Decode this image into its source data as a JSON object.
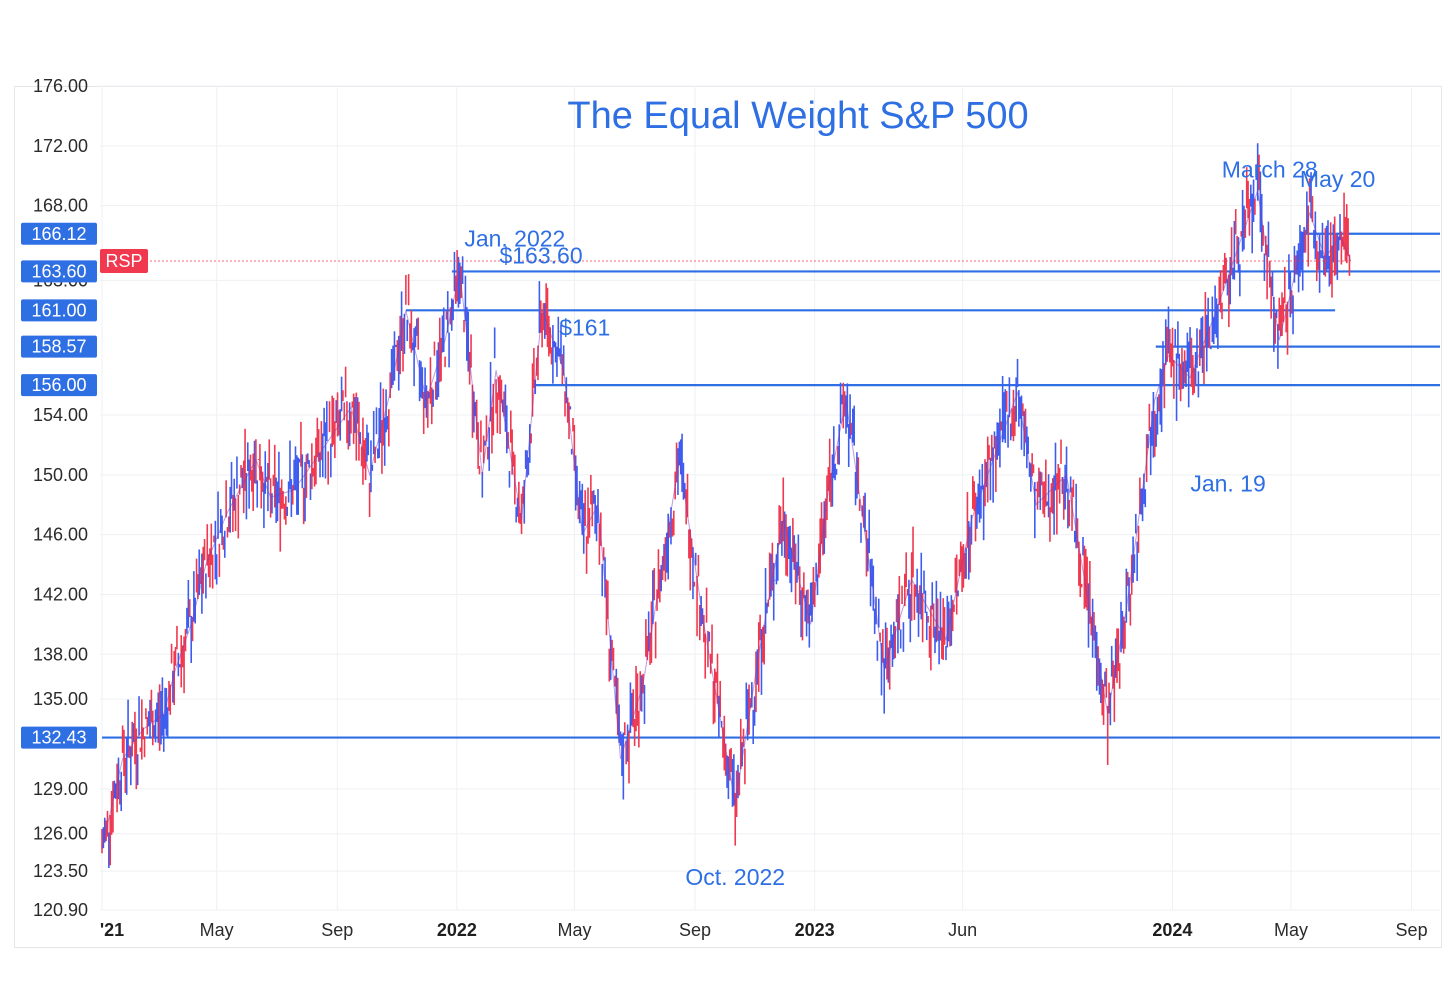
{
  "chart_data": {
    "type": "line",
    "title": "The Equal Weight S&P 500",
    "symbol": "RSP",
    "colors": {
      "accent": "#2f6fe4",
      "up": "#3d5cf0",
      "down": "#f0384f",
      "grid": "#eef0f3"
    },
    "grid": true,
    "ylim": [
      120.9,
      176.0
    ],
    "xlim": [
      "2021-01-04",
      "2024-09-30"
    ],
    "y_ticks": [
      "176.00",
      "172.00",
      "168.00",
      "163.00",
      "154.00",
      "150.00",
      "146.00",
      "142.00",
      "138.00",
      "135.00",
      "129.00",
      "126.00",
      "123.50",
      "120.90"
    ],
    "y_tick_values": [
      176.0,
      172.0,
      168.0,
      163.0,
      154.0,
      150.0,
      146.0,
      142.0,
      138.0,
      135.0,
      129.0,
      126.0,
      123.5,
      120.9
    ],
    "x_ticks": [
      {
        "label": "'21",
        "date": "2021-01-01",
        "bold": true
      },
      {
        "label": "May",
        "date": "2021-05-01",
        "bold": false
      },
      {
        "label": "Sep",
        "date": "2021-09-01",
        "bold": false
      },
      {
        "label": "2022",
        "date": "2022-01-01",
        "bold": true
      },
      {
        "label": "May",
        "date": "2022-05-01",
        "bold": false
      },
      {
        "label": "Sep",
        "date": "2022-09-01",
        "bold": false
      },
      {
        "label": "2023",
        "date": "2023-01-01",
        "bold": true
      },
      {
        "label": "Jun",
        "date": "2023-06-01",
        "bold": false
      },
      {
        "label": "2024",
        "date": "2024-01-01",
        "bold": true
      },
      {
        "label": "May",
        "date": "2024-05-01",
        "bold": false
      },
      {
        "label": "Sep",
        "date": "2024-09-01",
        "bold": false
      }
    ],
    "price_badges": [
      {
        "label": "166.12",
        "value": 166.12
      },
      {
        "label": "163.60",
        "value": 163.6
      },
      {
        "label": "161.00",
        "value": 161.0
      },
      {
        "label": "158.57",
        "value": 158.57
      },
      {
        "label": "156.00",
        "value": 156.0
      },
      {
        "label": "132.43",
        "value": 132.43
      }
    ],
    "last_price": 164.3,
    "horizontal_levels": [
      {
        "value": 166.12,
        "from": "2024-05-15",
        "to": "2024-09-30"
      },
      {
        "value": 163.6,
        "from": "2021-12-27",
        "to": "2024-09-30"
      },
      {
        "value": 161.0,
        "from": "2021-11-10",
        "to": "2024-06-15"
      },
      {
        "value": 158.57,
        "from": "2023-12-15",
        "to": "2024-09-30"
      },
      {
        "value": 156.0,
        "from": "2022-03-20",
        "to": "2024-09-30"
      },
      {
        "value": 132.43,
        "from": "2021-01-04",
        "to": "2024-09-30"
      }
    ],
    "annotations": [
      {
        "text": "Jan. 2022",
        "date": "2022-01-01",
        "value": 163.6
      },
      {
        "text": "$163.60",
        "date": "2022-02-10",
        "value": 163.6
      },
      {
        "text": "$161",
        "date": "2022-04-15",
        "value": 161.0
      },
      {
        "text": "March 28",
        "date": "2024-03-28",
        "value": 169.6
      },
      {
        "text": "May 20",
        "date": "2024-05-20",
        "value": 168.3
      },
      {
        "text": "Jan. 19",
        "date": "2024-01-19",
        "value": 151.5
      },
      {
        "text": "Oct. 2022",
        "date": "2022-10-12",
        "value": 124.9
      }
    ],
    "series": [
      {
        "values": [
          {
            "date": "2021-01-04",
            "value": 125.0
          },
          {
            "date": "2021-01-25",
            "value": 131.0
          },
          {
            "date": "2021-02-15",
            "value": 133.0
          },
          {
            "date": "2021-03-08",
            "value": 134.0
          },
          {
            "date": "2021-03-20",
            "value": 137.0
          },
          {
            "date": "2021-04-05",
            "value": 140.0
          },
          {
            "date": "2021-04-20",
            "value": 144.0
          },
          {
            "date": "2021-05-12",
            "value": 147.5
          },
          {
            "date": "2021-06-10",
            "value": 151.0
          },
          {
            "date": "2021-06-25",
            "value": 148.5
          },
          {
            "date": "2021-07-19",
            "value": 149.0
          },
          {
            "date": "2021-08-20",
            "value": 152.0
          },
          {
            "date": "2021-09-15",
            "value": 154.5
          },
          {
            "date": "2021-10-04",
            "value": 150.0
          },
          {
            "date": "2021-10-25",
            "value": 155.5
          },
          {
            "date": "2021-11-10",
            "value": 161.0
          },
          {
            "date": "2021-12-01",
            "value": 155.0
          },
          {
            "date": "2021-12-20",
            "value": 159.0
          },
          {
            "date": "2022-01-04",
            "value": 163.6
          },
          {
            "date": "2022-01-27",
            "value": 150.0
          },
          {
            "date": "2022-02-10",
            "value": 157.0
          },
          {
            "date": "2022-03-08",
            "value": 147.0
          },
          {
            "date": "2022-03-29",
            "value": 161.0
          },
          {
            "date": "2022-04-20",
            "value": 157.0
          },
          {
            "date": "2022-05-09",
            "value": 146.0
          },
          {
            "date": "2022-05-25",
            "value": 148.0
          },
          {
            "date": "2022-06-17",
            "value": 131.0
          },
          {
            "date": "2022-07-10",
            "value": 136.0
          },
          {
            "date": "2022-08-16",
            "value": 151.0
          },
          {
            "date": "2022-09-10",
            "value": 140.0
          },
          {
            "date": "2022-10-12",
            "value": 128.0
          },
          {
            "date": "2022-11-05",
            "value": 138.0
          },
          {
            "date": "2022-11-30",
            "value": 147.0
          },
          {
            "date": "2022-12-28",
            "value": 140.0
          },
          {
            "date": "2023-01-15",
            "value": 149.0
          },
          {
            "date": "2023-02-02",
            "value": 155.0
          },
          {
            "date": "2023-03-13",
            "value": 137.0
          },
          {
            "date": "2023-04-10",
            "value": 143.0
          },
          {
            "date": "2023-05-15",
            "value": 139.0
          },
          {
            "date": "2023-06-10",
            "value": 147.0
          },
          {
            "date": "2023-07-27",
            "value": 155.5
          },
          {
            "date": "2023-08-15",
            "value": 148.0
          },
          {
            "date": "2023-09-15",
            "value": 150.0
          },
          {
            "date": "2023-10-27",
            "value": 134.0
          },
          {
            "date": "2023-11-15",
            "value": 141.0
          },
          {
            "date": "2023-12-14",
            "value": 155.0
          },
          {
            "date": "2023-12-28",
            "value": 158.0
          },
          {
            "date": "2024-01-19",
            "value": 156.5
          },
          {
            "date": "2024-02-15",
            "value": 161.0
          },
          {
            "date": "2024-03-28",
            "value": 169.0
          },
          {
            "date": "2024-04-19",
            "value": 159.0
          },
          {
            "date": "2024-05-20",
            "value": 167.5
          },
          {
            "date": "2024-06-05",
            "value": 164.5
          },
          {
            "date": "2024-06-20",
            "value": 166.0
          },
          {
            "date": "2024-07-01",
            "value": 164.3
          }
        ]
      }
    ]
  }
}
